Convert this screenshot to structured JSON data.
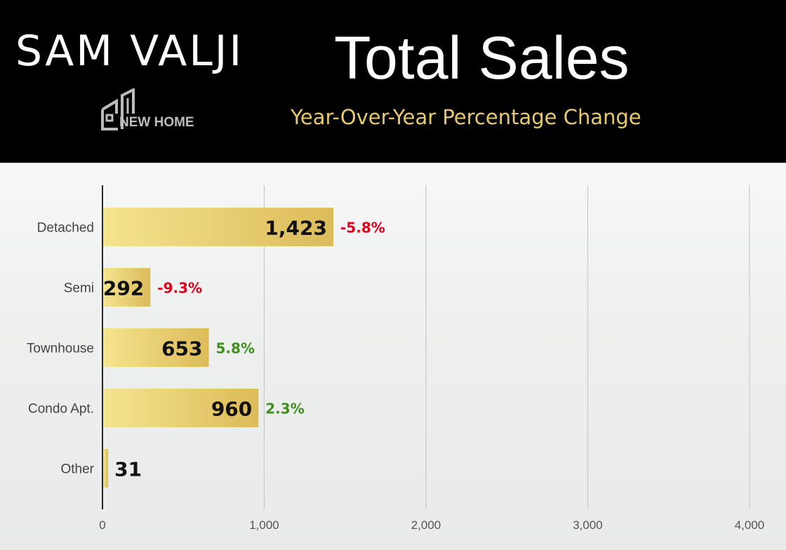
{
  "header": {
    "brand": "SAM VALJI",
    "logo_text": "NEW HOME",
    "title": "Total Sales",
    "subtitle": "Year-Over-Year Percentage Change"
  },
  "colors": {
    "header_bg": "#000000",
    "subtitle": "#e6c96f",
    "bar_light": "#f5e48e",
    "bar_dark": "#dcbb5a",
    "negative": "#e0001b",
    "positive": "#3f8f1f"
  },
  "chart_data": {
    "type": "bar",
    "orientation": "horizontal",
    "categories": [
      "Detached",
      "Semi",
      "Townhouse",
      "Condo Apt.",
      "Other"
    ],
    "values": [
      1423,
      292,
      653,
      960,
      31
    ],
    "value_labels": [
      "1,423",
      "292",
      "653",
      "960",
      "31"
    ],
    "changes": [
      "-5.8%",
      "-9.3%",
      "5.8%",
      "2.3%",
      ""
    ],
    "change_sign": [
      "negative",
      "negative",
      "positive",
      "positive",
      "none"
    ],
    "xlim": [
      0,
      4000
    ],
    "xticks": [
      0,
      1000,
      2000,
      3000,
      4000
    ],
    "xtick_labels": [
      "0",
      "1,000",
      "2,000",
      "3,000",
      "4,000"
    ],
    "grid": true
  }
}
